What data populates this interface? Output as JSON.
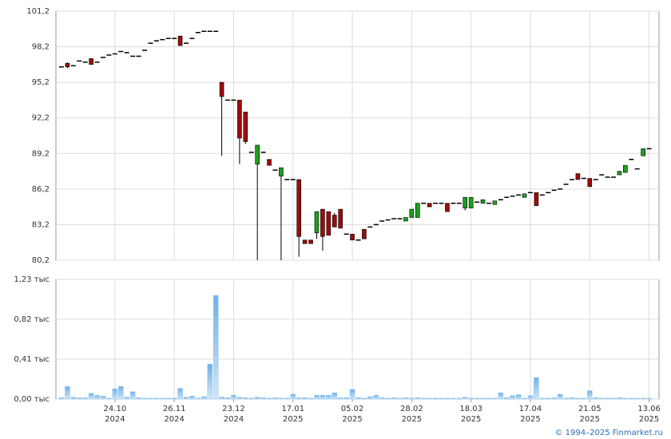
{
  "chart_data": {
    "type": "candlestick",
    "up_color": "#1f9e1f",
    "down_color": "#9e0b0b",
    "volume_color": "#8ec5ee",
    "ylim": [
      80.2,
      101.2
    ],
    "yticks": [
      {
        "value": 80.2,
        "label": "80,2"
      },
      {
        "value": 83.2,
        "label": "83,2"
      },
      {
        "value": 86.2,
        "label": "86,2"
      },
      {
        "value": 89.2,
        "label": "89,2"
      },
      {
        "value": 92.2,
        "label": "92,2"
      },
      {
        "value": 95.2,
        "label": "95,2"
      },
      {
        "value": 98.2,
        "label": "98,2"
      },
      {
        "value": 101.2,
        "label": "101,2"
      }
    ],
    "vlim": [
      0,
      1230
    ],
    "vticks": [
      {
        "value": 0,
        "label": "0,00 тыс"
      },
      {
        "value": 410,
        "label": "0,41 тыс"
      },
      {
        "value": 820,
        "label": "0,82 тыс"
      },
      {
        "value": 1230,
        "label": "1,23 тыс"
      }
    ],
    "x_labels": [
      {
        "index": 9,
        "day": "24.10",
        "year": "2024"
      },
      {
        "index": 19,
        "day": "26.11",
        "year": "2024"
      },
      {
        "index": 29,
        "day": "23.12",
        "year": "2024"
      },
      {
        "index": 39,
        "day": "17.01",
        "year": "2025"
      },
      {
        "index": 49,
        "day": "05.02",
        "year": "2025"
      },
      {
        "index": 59,
        "day": "28.02",
        "year": "2025"
      },
      {
        "index": 69,
        "day": "18.03",
        "year": "2025"
      },
      {
        "index": 79,
        "day": "17.04",
        "year": "2025"
      },
      {
        "index": 89,
        "day": "21.05",
        "year": "2025"
      },
      {
        "index": 99,
        "day": "13.06",
        "year": "2025"
      }
    ],
    "open": [
      96.5,
      96.8,
      96.6,
      97.0,
      96.9,
      97.2,
      96.9,
      97.3,
      97.5,
      97.6,
      97.8,
      97.7,
      97.4,
      97.4,
      97.9,
      98.5,
      98.7,
      98.8,
      98.9,
      98.9,
      99.1,
      98.5,
      98.9,
      99.4,
      99.5,
      99.5,
      99.5,
      95.2,
      93.7,
      93.7,
      93.7,
      92.7,
      89.3,
      88.3,
      89.3,
      88.7,
      87.8,
      87.3,
      87.0,
      87.0,
      87.0,
      81.9,
      81.9,
      82.5,
      84.5,
      84.3,
      84.0,
      84.5,
      82.4,
      82.4,
      81.9,
      82.8,
      83.0,
      83.2,
      83.5,
      83.6,
      83.7,
      83.7,
      83.5,
      83.8,
      83.8,
      85.0,
      85.0,
      85.0,
      85.0,
      85.0,
      85.0,
      85.0,
      84.6,
      84.6,
      85.1,
      85.0,
      85.0,
      84.9,
      85.3,
      85.5,
      85.6,
      85.7,
      85.5,
      85.9,
      85.9,
      85.7,
      85.9,
      86.1,
      86.2,
      86.6,
      87.0,
      87.5,
      87.1,
      87.1,
      87.0,
      87.4,
      87.2,
      87.2,
      87.4,
      87.6,
      88.7,
      87.9,
      89.0,
      89.6
    ],
    "high": [
      96.5,
      96.9,
      96.6,
      97.0,
      96.9,
      97.2,
      96.9,
      97.3,
      97.5,
      97.6,
      97.8,
      97.7,
      97.4,
      97.4,
      97.9,
      98.5,
      98.7,
      98.8,
      98.9,
      98.9,
      99.1,
      98.5,
      98.9,
      99.4,
      99.5,
      99.5,
      99.5,
      95.2,
      93.7,
      93.7,
      93.7,
      92.7,
      89.3,
      89.9,
      89.3,
      88.7,
      87.8,
      88.0,
      87.0,
      87.0,
      87.0,
      81.9,
      81.9,
      84.3,
      84.5,
      84.3,
      84.2,
      84.5,
      82.4,
      82.4,
      81.9,
      82.8,
      83.0,
      83.2,
      83.5,
      83.6,
      83.7,
      83.7,
      83.8,
      84.5,
      85.0,
      85.0,
      85.0,
      85.0,
      85.0,
      85.0,
      85.0,
      85.0,
      85.5,
      85.5,
      85.1,
      85.3,
      85.0,
      85.2,
      85.3,
      85.5,
      85.6,
      85.7,
      85.8,
      85.9,
      85.9,
      85.7,
      85.9,
      86.1,
      86.2,
      86.6,
      87.0,
      87.5,
      87.1,
      87.1,
      87.0,
      87.4,
      87.2,
      87.2,
      87.7,
      88.2,
      88.7,
      87.9,
      89.6,
      89.6
    ],
    "low": [
      96.5,
      96.4,
      96.6,
      97.0,
      96.9,
      96.7,
      96.9,
      97.3,
      97.5,
      97.6,
      97.8,
      97.7,
      97.4,
      97.4,
      97.9,
      98.5,
      98.7,
      98.8,
      98.9,
      98.9,
      98.3,
      98.5,
      98.9,
      99.4,
      99.5,
      99.5,
      99.5,
      89.0,
      93.7,
      93.7,
      88.3,
      90.0,
      89.3,
      80.2,
      89.3,
      88.2,
      87.8,
      80.2,
      87.0,
      87.0,
      80.5,
      81.6,
      81.6,
      82.0,
      81.0,
      82.3,
      83.0,
      82.9,
      82.4,
      81.9,
      81.9,
      82.0,
      83.0,
      83.2,
      83.5,
      83.6,
      83.7,
      83.7,
      83.5,
      83.8,
      83.8,
      85.0,
      84.7,
      85.0,
      85.0,
      84.3,
      85.0,
      85.0,
      84.4,
      84.6,
      85.1,
      85.0,
      85.0,
      84.9,
      85.3,
      85.5,
      85.6,
      85.7,
      85.5,
      85.9,
      84.8,
      85.7,
      85.9,
      86.1,
      86.2,
      86.6,
      87.0,
      87.0,
      87.1,
      86.4,
      87.0,
      87.4,
      87.2,
      87.2,
      87.4,
      87.6,
      88.7,
      87.9,
      89.0,
      89.6
    ],
    "close": [
      96.5,
      96.5,
      96.6,
      97.0,
      96.9,
      96.7,
      96.9,
      97.3,
      97.5,
      97.6,
      97.8,
      97.7,
      97.4,
      97.4,
      97.9,
      98.5,
      98.7,
      98.8,
      98.9,
      98.9,
      98.3,
      98.5,
      98.9,
      99.4,
      99.5,
      99.5,
      99.5,
      94.0,
      93.7,
      93.7,
      90.5,
      90.2,
      89.3,
      89.9,
      89.3,
      88.2,
      87.8,
      88.0,
      87.0,
      87.0,
      82.2,
      81.6,
      81.6,
      84.3,
      82.2,
      82.3,
      83.0,
      82.9,
      82.4,
      81.9,
      81.9,
      82.0,
      83.0,
      83.2,
      83.5,
      83.6,
      83.7,
      83.7,
      83.8,
      84.5,
      85.0,
      85.0,
      84.7,
      85.0,
      85.0,
      84.3,
      85.0,
      85.0,
      85.5,
      85.5,
      85.1,
      85.3,
      85.0,
      85.2,
      85.3,
      85.5,
      85.6,
      85.7,
      85.8,
      85.9,
      84.8,
      85.7,
      85.9,
      86.1,
      86.2,
      86.6,
      87.0,
      87.0,
      87.1,
      86.4,
      87.0,
      87.4,
      87.2,
      87.2,
      87.7,
      88.2,
      88.7,
      87.9,
      89.6,
      89.6
    ],
    "volume": [
      15,
      130,
      20,
      15,
      15,
      60,
      40,
      30,
      10,
      105,
      130,
      20,
      75,
      15,
      10,
      10,
      10,
      10,
      10,
      10,
      110,
      20,
      30,
      10,
      25,
      360,
      1065,
      20,
      15,
      40,
      20,
      15,
      10,
      20,
      15,
      10,
      15,
      10,
      10,
      50,
      15,
      15,
      10,
      40,
      40,
      40,
      65,
      15,
      15,
      100,
      15,
      10,
      25,
      40,
      15,
      10,
      15,
      10,
      15,
      10,
      15,
      10,
      10,
      10,
      10,
      10,
      10,
      10,
      20,
      10,
      10,
      10,
      10,
      10,
      65,
      15,
      35,
      45,
      10,
      35,
      220,
      10,
      10,
      15,
      50,
      10,
      15,
      10,
      10,
      85,
      15,
      10,
      10,
      10,
      15,
      10,
      10,
      10,
      10,
      10
    ]
  },
  "footer": "© 1994–2025 Finmarket.ru"
}
